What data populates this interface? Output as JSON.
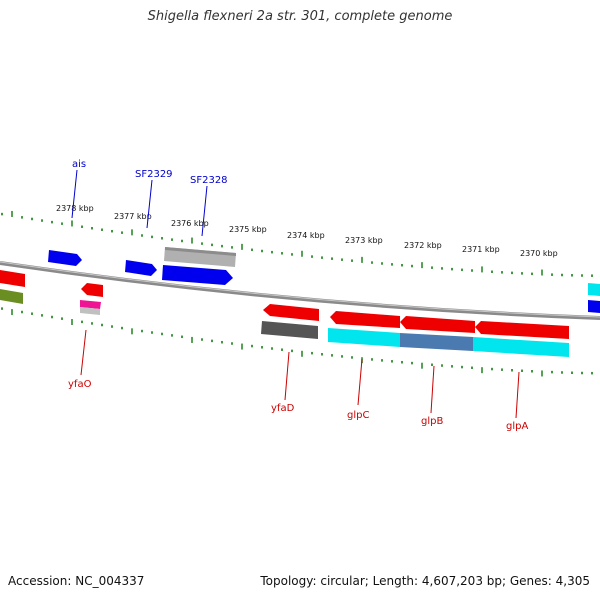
{
  "title": "Shigella flexneri 2a str. 301, complete genome",
  "accession_label": "Accession: NC_004337",
  "summary_label": "Topology: circular; Length: 4,607,203 bp; Genes: 4,305",
  "colors": {
    "backbone": "#888888",
    "scale_ticks": "#2e8b2e",
    "top_label": "#0000cc",
    "bottom_label": "#cc0000",
    "blue": "#0000ee",
    "gray": "#b0b0b0",
    "red": "#ee0000",
    "olive": "#6b8e23",
    "pink": "#ee1493",
    "darkgray": "#555555",
    "cyan": "#00e5ee",
    "steel": "#4a7ab0"
  },
  "scale_labels": [
    "2378 kbp",
    "2377 kbp",
    "2376 kbp",
    "2375 kbp",
    "2374 kbp",
    "2373 kbp",
    "2372 kbp",
    "2371 kbp",
    "2370 kbp"
  ],
  "gene_labels_top": [
    "ais",
    "SF2329",
    "SF2328"
  ],
  "gene_labels_bottom": [
    "yfaO",
    "yfaD",
    "glpC",
    "glpB",
    "glpA"
  ]
}
